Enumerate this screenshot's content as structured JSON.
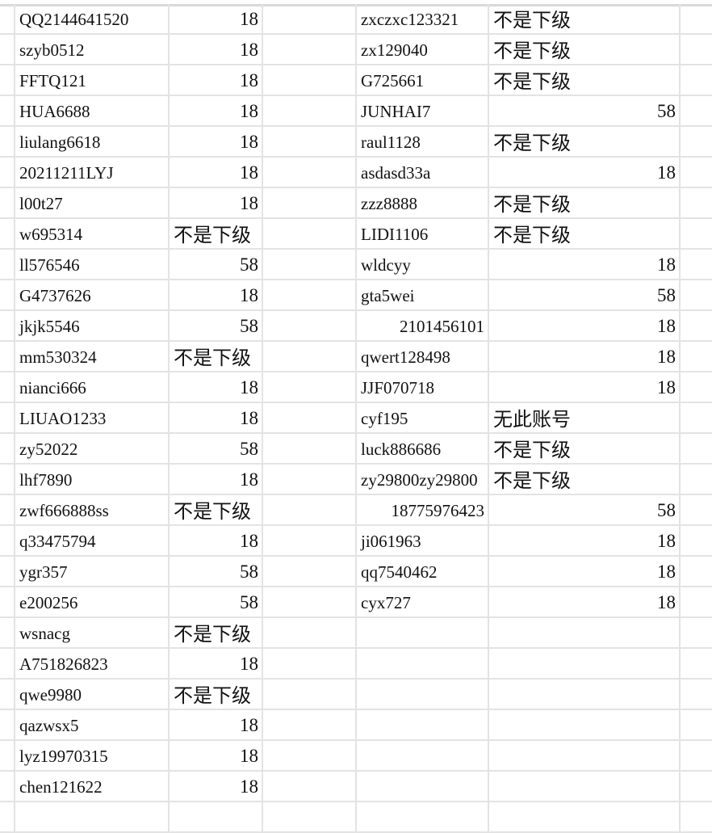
{
  "sheet": {
    "left_table": [
      {
        "account": "QQ2144641520",
        "result": "18"
      },
      {
        "account": "szyb0512",
        "result": "18"
      },
      {
        "account": "FFTQ121",
        "result": "18"
      },
      {
        "account": "HUA6688",
        "result": "18"
      },
      {
        "account": "liulang6618",
        "result": "18"
      },
      {
        "account": "20211211LYJ",
        "result": "18"
      },
      {
        "account": "l00t27",
        "result": "18"
      },
      {
        "account": "w695314",
        "result": "不是下级"
      },
      {
        "account": "ll576546",
        "result": "58"
      },
      {
        "account": "G4737626",
        "result": "18"
      },
      {
        "account": "jkjk5546",
        "result": "58"
      },
      {
        "account": "mm530324",
        "result": "不是下级"
      },
      {
        "account": "nianci666",
        "result": "18"
      },
      {
        "account": "LIUAO1233",
        "result": "18"
      },
      {
        "account": "zy52022",
        "result": "58"
      },
      {
        "account": "lhf7890",
        "result": "18"
      },
      {
        "account": "zwf666888ss",
        "result": "不是下级"
      },
      {
        "account": "q33475794",
        "result": "18"
      },
      {
        "account": "ygr357",
        "result": "58"
      },
      {
        "account": "e200256",
        "result": "58"
      },
      {
        "account": "wsnacg",
        "result": "不是下级"
      },
      {
        "account": "A751826823",
        "result": "18"
      },
      {
        "account": "qwe9980",
        "result": "不是下级"
      },
      {
        "account": "qazwsx5",
        "result": "18"
      },
      {
        "account": "lyz19970315",
        "result": "18"
      },
      {
        "account": "chen121622",
        "result": "18"
      }
    ],
    "right_table": [
      {
        "account": "zxczxc123321",
        "result": "不是下级"
      },
      {
        "account": "zx129040",
        "result": "不是下级"
      },
      {
        "account": "G725661",
        "result": "不是下级"
      },
      {
        "account": "JUNHAI7",
        "result": "58"
      },
      {
        "account": "raul1128",
        "result": "不是下级"
      },
      {
        "account": "asdasd33a",
        "result": "18"
      },
      {
        "account": "zzz8888",
        "result": "不是下级"
      },
      {
        "account": "LIDI1106",
        "result": "不是下级"
      },
      {
        "account": "wldcyy",
        "result": "18"
      },
      {
        "account": "gta5wei",
        "result": "58"
      },
      {
        "account": "2101456101",
        "result": "18"
      },
      {
        "account": "qwert128498",
        "result": "18"
      },
      {
        "account": "JJF070718",
        "result": "18"
      },
      {
        "account": "cyf195",
        "result": "无此账号"
      },
      {
        "account": "luck886686",
        "result": "不是下级"
      },
      {
        "account": "zy29800zy29800",
        "result": "不是下级"
      },
      {
        "account": "18775976423",
        "result": "58"
      },
      {
        "account": "ji061963",
        "result": "18"
      },
      {
        "account": "qq7540462",
        "result": "18"
      },
      {
        "account": "cyx727",
        "result": "18"
      }
    ]
  }
}
